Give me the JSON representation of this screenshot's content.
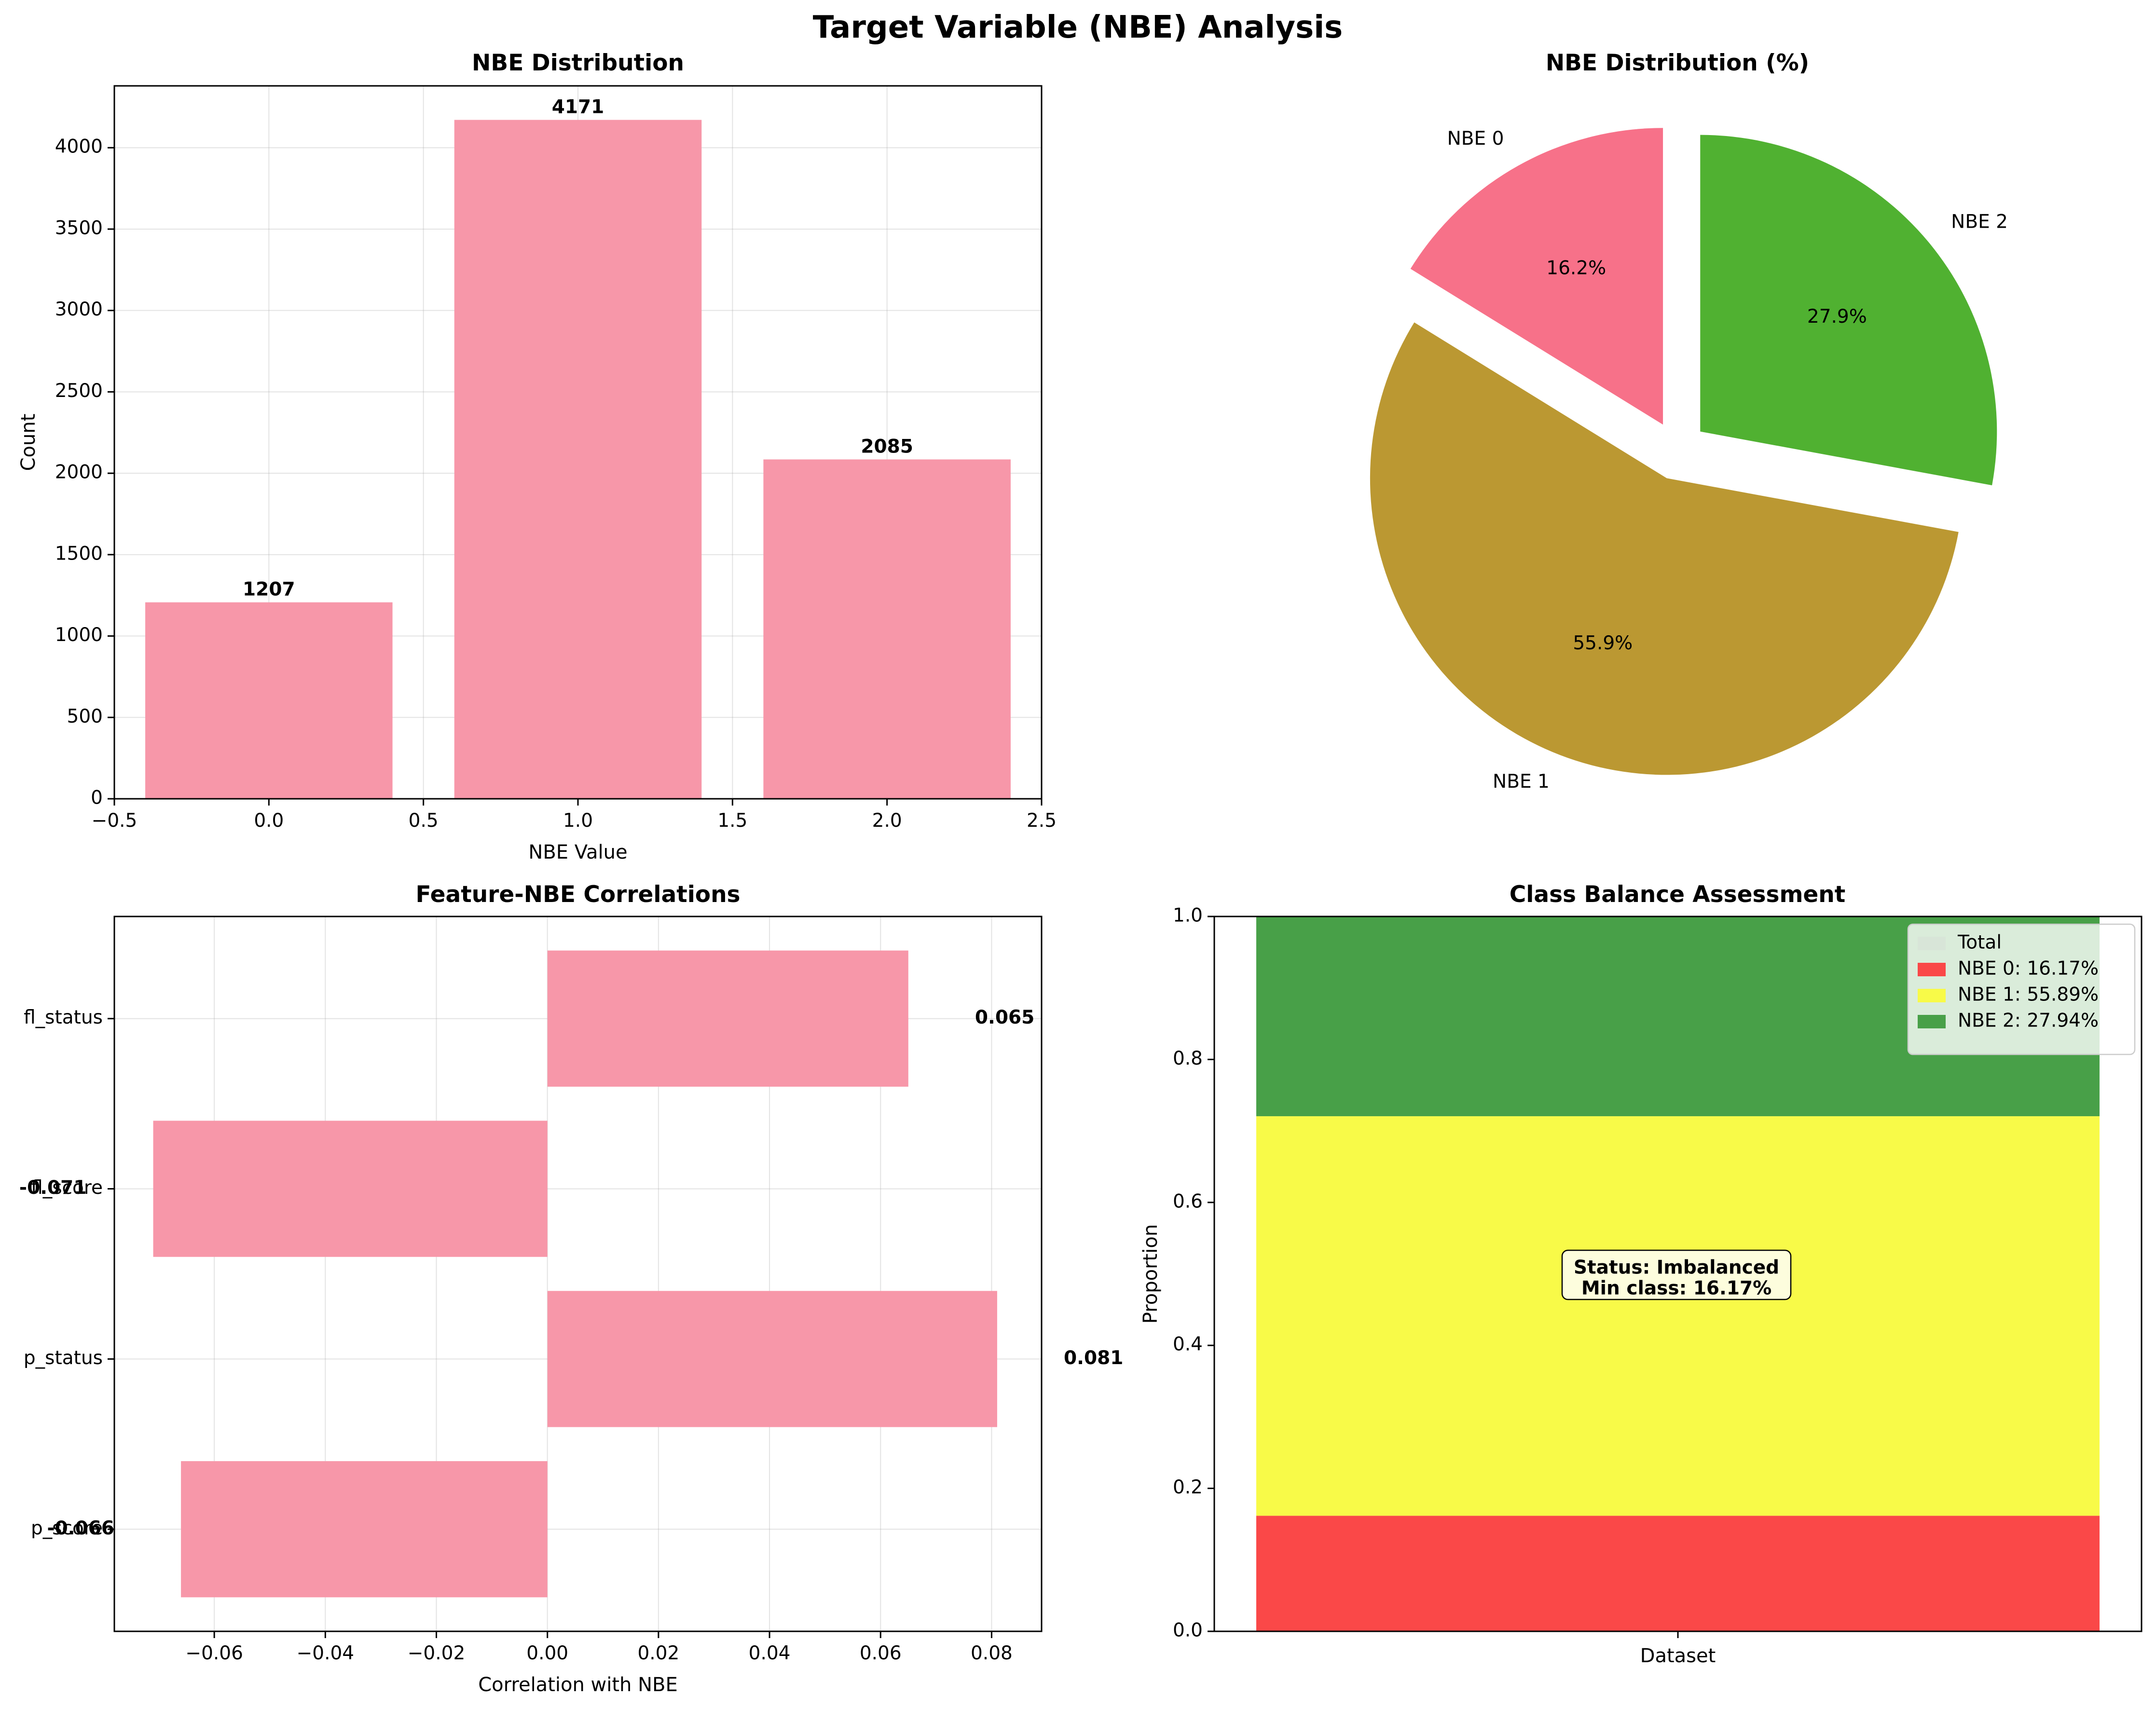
{
  "suptitle": "Target Variable (NBE) Analysis",
  "chart_data": [
    {
      "type": "bar",
      "title": "NBE Distribution",
      "xlabel": "NBE Value",
      "ylabel": "Count",
      "x": [
        0,
        1,
        2
      ],
      "values": [
        1207,
        4171,
        2085
      ],
      "data_labels": [
        "1207",
        "4171",
        "2085"
      ],
      "xlim": [
        -0.5,
        2.5
      ],
      "ylim": [
        0,
        4380
      ],
      "xticks": [
        -0.5,
        0.0,
        0.5,
        1.0,
        1.5,
        2.0,
        2.5
      ],
      "xtick_labels": [
        "−0.5",
        "0.0",
        "0.5",
        "1.0",
        "1.5",
        "2.0",
        "2.5"
      ],
      "yticks": [
        0,
        500,
        1000,
        1500,
        2000,
        2500,
        3000,
        3500,
        4000
      ],
      "ytick_labels": [
        "0",
        "500",
        "1000",
        "1500",
        "2000",
        "2500",
        "3000",
        "3500",
        "4000"
      ],
      "grid": true,
      "color": "#f797a9"
    },
    {
      "type": "pie",
      "title": "NBE Distribution (%)",
      "labels": [
        "NBE 0",
        "NBE 1",
        "NBE 2"
      ],
      "values": [
        16.2,
        55.9,
        27.9
      ],
      "pct_labels": [
        "16.2%",
        "55.9%",
        "27.9%"
      ],
      "colors": [
        "#f77189",
        "#bb9832",
        "#50b131"
      ],
      "exploded": true,
      "start_angle_deg": 90
    },
    {
      "type": "bar",
      "orientation": "horizontal",
      "title": "Feature-NBE Correlations",
      "xlabel": "Correlation with NBE",
      "categories": [
        "fl_status",
        "fl_score",
        "p_status",
        "p_score"
      ],
      "values": [
        0.065,
        -0.071,
        0.081,
        -0.066
      ],
      "data_labels": [
        "0.065",
        "-0.071",
        "0.081",
        "-0.066"
      ],
      "xlim": [
        -0.078,
        0.089
      ],
      "xticks": [
        -0.06,
        -0.04,
        -0.02,
        0.0,
        0.02,
        0.04,
        0.06,
        0.08
      ],
      "xtick_labels": [
        "−0.06",
        "−0.04",
        "−0.02",
        "0.00",
        "0.02",
        "0.04",
        "0.06",
        "0.08"
      ],
      "grid": true,
      "color": "#f797a9"
    },
    {
      "type": "bar",
      "stacked": true,
      "title": "Class Balance Assessment",
      "ylabel": "Proportion",
      "categories": [
        "Dataset"
      ],
      "ylim": [
        0,
        1
      ],
      "yticks": [
        0.0,
        0.2,
        0.4,
        0.6,
        0.8,
        1.0
      ],
      "ytick_labels": [
        "0.0",
        "0.2",
        "0.4",
        "0.6",
        "0.8",
        "1.0"
      ],
      "series": [
        {
          "name": "Total",
          "values": [
            1.0
          ],
          "color": "#d3d3d3"
        },
        {
          "name": "NBE 0: 16.17%",
          "values": [
            0.1617
          ],
          "color": "#fa4848"
        },
        {
          "name": "NBE 1: 55.89%",
          "values": [
            0.5589
          ],
          "color": "#f8fa48"
        },
        {
          "name": "NBE 2: 27.94%",
          "values": [
            0.2794
          ],
          "color": "#48a048"
        }
      ],
      "legend_position": "top-right",
      "annotation": [
        "Status: Imbalanced",
        "Min class: 16.17%"
      ]
    }
  ]
}
